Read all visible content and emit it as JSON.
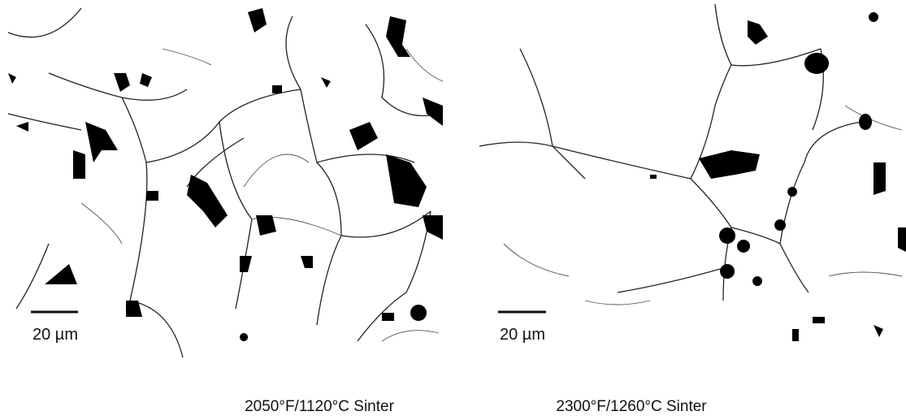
{
  "panels": [
    {
      "scale_label": "20 µm",
      "caption": "2050°F/1120°C Sinter"
    },
    {
      "scale_label": "20 µm",
      "caption": "2300°F/1260°C Sinter"
    }
  ]
}
